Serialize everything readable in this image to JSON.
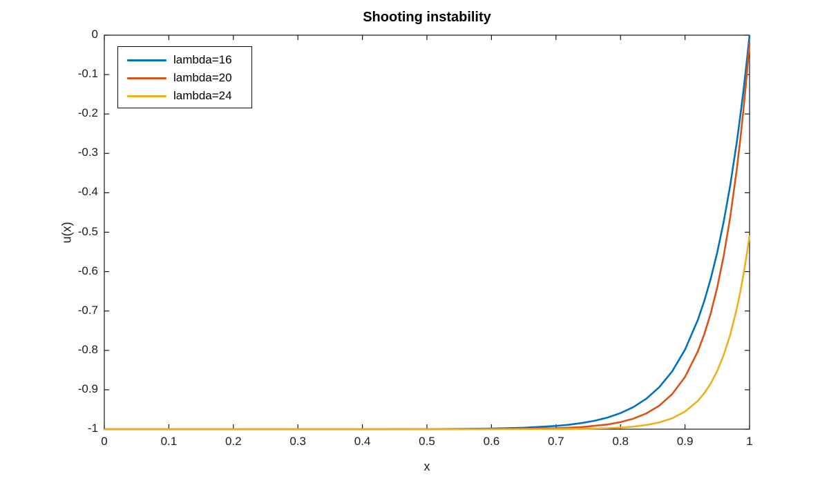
{
  "figure": {
    "background": "#ffffff",
    "axis_color": "#151515",
    "text_color": "#1c1c1c"
  },
  "chart_data": {
    "type": "line",
    "title": "Shooting instability",
    "xlabel": "x",
    "ylabel": "u(x)",
    "xlim": [
      0,
      1
    ],
    "ylim": [
      -1,
      0
    ],
    "xticks": [
      0,
      0.1,
      0.2,
      0.3,
      0.4,
      0.5,
      0.6,
      0.7,
      0.8,
      0.9,
      1
    ],
    "xtick_labels": [
      "0",
      "0.1",
      "0.2",
      "0.3",
      "0.4",
      "0.5",
      "0.6",
      "0.7",
      "0.8",
      "0.9",
      "1"
    ],
    "yticks": [
      0,
      -0.1,
      -0.2,
      -0.3,
      -0.4,
      -0.5,
      -0.6,
      -0.7,
      -0.8,
      -0.9,
      -1
    ],
    "ytick_labels": [
      "0",
      "-0.1",
      "-0.2",
      "-0.3",
      "-0.4",
      "-0.5",
      "-0.6",
      "-0.7",
      "-0.8",
      "-0.9",
      "-1"
    ],
    "grid": false,
    "box": true,
    "legend": {
      "position": "top-left",
      "entries": [
        "lambda=16",
        "lambda=20",
        "lambda=24"
      ]
    },
    "series": [
      {
        "name": "lambda=16",
        "color": "#0072BD",
        "x": [
          0,
          0.1,
          0.2,
          0.3,
          0.4,
          0.5,
          0.55,
          0.6,
          0.65,
          0.7,
          0.72,
          0.74,
          0.76,
          0.78,
          0.8,
          0.82,
          0.84,
          0.86,
          0.88,
          0.9,
          0.92,
          0.93,
          0.94,
          0.95,
          0.96,
          0.97,
          0.98,
          0.985,
          0.99,
          0.995,
          1
        ],
        "y": [
          -1,
          -1,
          -1,
          -1,
          -1,
          -0.9997,
          -0.9993,
          -0.9983,
          -0.9963,
          -0.9918,
          -0.9887,
          -0.9844,
          -0.9785,
          -0.9704,
          -0.9592,
          -0.9439,
          -0.9227,
          -0.8935,
          -0.8534,
          -0.7981,
          -0.722,
          -0.6737,
          -0.6171,
          -0.5507,
          -0.4727,
          -0.3812,
          -0.2739,
          -0.2134,
          -0.1479,
          -0.0769,
          0
        ]
      },
      {
        "name": "lambda=20",
        "color": "#D95319",
        "x": [
          0,
          0.1,
          0.2,
          0.3,
          0.4,
          0.5,
          0.6,
          0.65,
          0.7,
          0.74,
          0.78,
          0.8,
          0.82,
          0.84,
          0.86,
          0.88,
          0.9,
          0.92,
          0.93,
          0.94,
          0.95,
          0.96,
          0.97,
          0.98,
          0.985,
          0.99,
          0.995,
          1
        ],
        "y": [
          -1,
          -1,
          -1,
          -1,
          -1,
          -1,
          -0.9997,
          -0.9991,
          -0.9976,
          -0.9946,
          -0.988,
          -0.9821,
          -0.9732,
          -0.96,
          -0.9404,
          -0.9111,
          -0.8674,
          -0.8021,
          -0.7583,
          -0.7048,
          -0.6395,
          -0.5597,
          -0.4622,
          -0.3431,
          -0.274,
          -0.1977,
          -0.1133,
          -0.02
        ]
      },
      {
        "name": "lambda=24",
        "color": "#EDB120",
        "x": [
          0,
          0.1,
          0.2,
          0.3,
          0.4,
          0.5,
          0.6,
          0.7,
          0.74,
          0.78,
          0.8,
          0.82,
          0.84,
          0.86,
          0.88,
          0.9,
          0.92,
          0.93,
          0.94,
          0.95,
          0.96,
          0.97,
          0.98,
          0.985,
          0.99,
          0.995,
          1
        ],
        "y": [
          -1,
          -1,
          -1,
          -1,
          -1,
          -1,
          -1,
          -0.9996,
          -0.999,
          -0.9975,
          -0.996,
          -0.9935,
          -0.9894,
          -0.9829,
          -0.9724,
          -0.9554,
          -0.9279,
          -0.9083,
          -0.8834,
          -0.8518,
          -0.8116,
          -0.7605,
          -0.6956,
          -0.6567,
          -0.613,
          -0.5636,
          -0.508
        ]
      }
    ]
  }
}
